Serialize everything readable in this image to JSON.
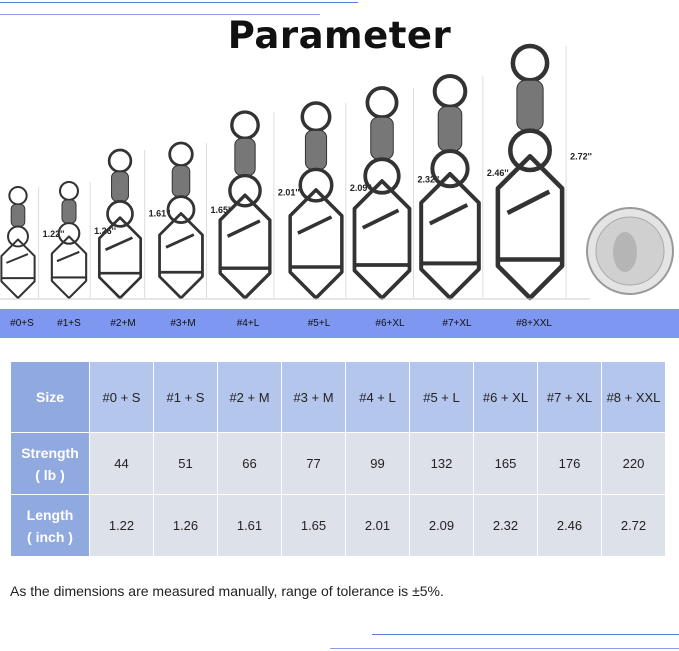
{
  "title": "Parameter",
  "figure": {
    "items": [
      {
        "size_label": "#0+S",
        "length_label": "1.22''"
      },
      {
        "size_label": "#1+S",
        "length_label": "1.26''"
      },
      {
        "size_label": "#2+M",
        "length_label": "1.61''"
      },
      {
        "size_label": "#3+M",
        "length_label": "1.65''"
      },
      {
        "size_label": "#4+L",
        "length_label": "2.01''"
      },
      {
        "size_label": "#5+L",
        "length_label": "2.09''"
      },
      {
        "size_label": "#6+XL",
        "length_label": "2.32''"
      },
      {
        "size_label": "#7+XL",
        "length_label": "2.46''"
      },
      {
        "size_label": "#8+XXL",
        "length_label": "2.72''"
      }
    ],
    "coin": "quarter-coin-icon",
    "band_color": "#7e98f2"
  },
  "table": {
    "header": {
      "label": "Size",
      "values": [
        "#0 + S",
        "#1 + S",
        "#2 + M",
        "#3 + M",
        "#4 + L",
        "#5 + L",
        "#6 + XL",
        "#7 + XL",
        "#8 + XXL"
      ]
    },
    "rows": [
      {
        "label_line1": "Strength",
        "label_line2": "( lb )",
        "values": [
          "44",
          "51",
          "66",
          "77",
          "99",
          "132",
          "165",
          "176",
          "220"
        ]
      },
      {
        "label_line1": "Length",
        "label_line2": "( inch )",
        "values": [
          "1.22",
          "1.26",
          "1.61",
          "1.65",
          "2.01",
          "2.09",
          "2.32",
          "2.46",
          "2.72"
        ]
      }
    ]
  },
  "note": "As the dimensions are measured manually, range of tolerance is ±5%."
}
